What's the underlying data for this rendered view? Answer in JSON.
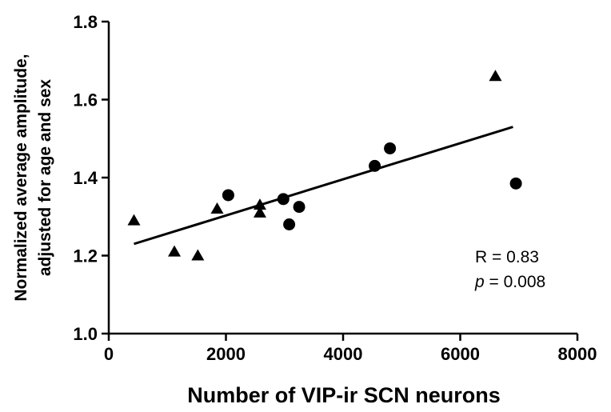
{
  "chart_data": {
    "type": "scatter",
    "xlabel": "Number of VIP-ir SCN neurons",
    "ylabel_line1": "Normalized average amplitude,",
    "ylabel_line2": "adjusted for age and sex",
    "xlim": [
      0,
      8000
    ],
    "ylim": [
      1.0,
      1.8
    ],
    "x_ticks": [
      "0",
      "2000",
      "4000",
      "6000",
      "8000"
    ],
    "y_ticks": [
      "1.0",
      "1.2",
      "1.4",
      "1.6",
      "1.8"
    ],
    "grid": false,
    "legend": "none",
    "series": [
      {
        "marker": "triangle",
        "points": [
          {
            "x": 430,
            "y": 1.29
          },
          {
            "x": 1120,
            "y": 1.21
          },
          {
            "x": 1520,
            "y": 1.2
          },
          {
            "x": 1850,
            "y": 1.32
          },
          {
            "x": 2580,
            "y": 1.33
          },
          {
            "x": 2580,
            "y": 1.31
          },
          {
            "x": 6600,
            "y": 1.66
          }
        ]
      },
      {
        "marker": "circle",
        "points": [
          {
            "x": 2040,
            "y": 1.355
          },
          {
            "x": 2980,
            "y": 1.345
          },
          {
            "x": 3080,
            "y": 1.28
          },
          {
            "x": 3250,
            "y": 1.325
          },
          {
            "x": 4540,
            "y": 1.43
          },
          {
            "x": 4800,
            "y": 1.475
          },
          {
            "x": 6950,
            "y": 1.385
          }
        ]
      }
    ],
    "regression_line": {
      "x1": 430,
      "y1": 1.23,
      "x2": 6900,
      "y2": 1.53
    },
    "annotations": {
      "r_text": "R = 0.83",
      "p_label": "p",
      "p_value": " = 0.008"
    },
    "colors": {
      "marks": "#000000",
      "background": "#ffffff"
    }
  }
}
